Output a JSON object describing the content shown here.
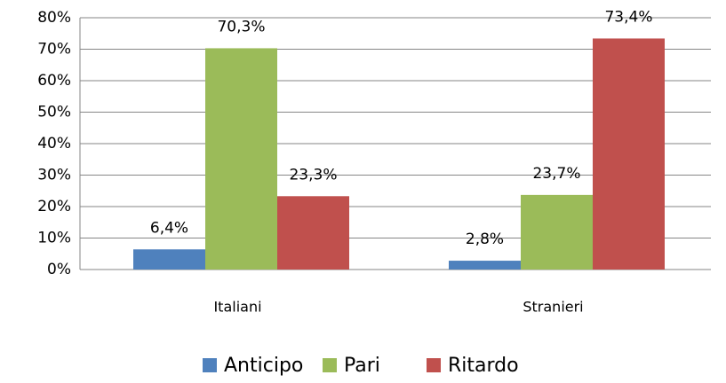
{
  "chart_data": {
    "type": "bar",
    "categories": [
      "Italiani",
      "Stranieri"
    ],
    "series": [
      {
        "name": "Anticipo",
        "color": "#4f81bd",
        "values": [
          6.4,
          2.8
        ],
        "value_labels": [
          "6,4%",
          "2,8%"
        ]
      },
      {
        "name": "Pari",
        "color": "#9bbb59",
        "values": [
          70.3,
          23.7
        ],
        "value_labels": [
          "70,3%",
          "23,7%"
        ]
      },
      {
        "name": "Ritardo",
        "color": "#c0504d",
        "values": [
          23.3,
          73.4
        ],
        "value_labels": [
          "23,3%",
          "73,4%"
        ]
      }
    ],
    "ylim": [
      0,
      80
    ],
    "yticks": [
      {
        "value": 0,
        "label": "0%"
      },
      {
        "value": 10,
        "label": "10%"
      },
      {
        "value": 20,
        "label": "20%"
      },
      {
        "value": 30,
        "label": "30%"
      },
      {
        "value": 40,
        "label": "40%"
      },
      {
        "value": 50,
        "label": "50%"
      },
      {
        "value": 60,
        "label": "60%"
      },
      {
        "value": 70,
        "label": "70%"
      },
      {
        "value": 80,
        "label": "80%"
      }
    ],
    "grid": true,
    "legend": "bottom"
  }
}
